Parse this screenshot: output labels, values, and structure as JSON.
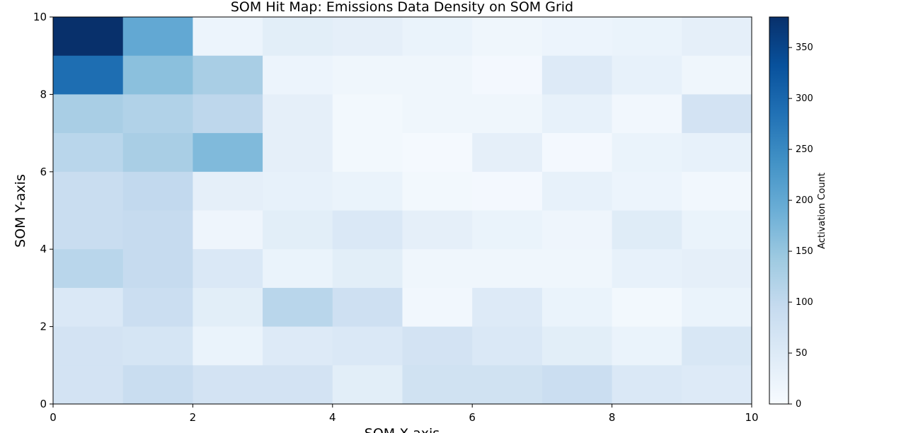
{
  "chart_data": {
    "type": "heatmap",
    "title": "SOM Hit Map: Emissions Data Density on SOM Grid",
    "xlabel": "SOM X-axis",
    "ylabel": "SOM Y-axis",
    "xlim": [
      0,
      10
    ],
    "ylim": [
      0,
      10
    ],
    "x_ticks": [
      0,
      2,
      4,
      6,
      8,
      10
    ],
    "y_ticks": [
      0,
      2,
      4,
      6,
      8,
      10
    ],
    "colormap": "Blues",
    "colorbar": {
      "label": "Activation Count",
      "range": [
        0,
        380
      ],
      "ticks": [
        0,
        50,
        100,
        150,
        200,
        250,
        300,
        350
      ]
    },
    "rows_top_to_bottom_y": [
      9,
      8,
      7,
      6,
      5,
      4,
      3,
      2,
      1,
      0
    ],
    "values": [
      [
        380,
        200,
        20,
        40,
        35,
        25,
        15,
        20,
        25,
        35
      ],
      [
        290,
        160,
        130,
        20,
        15,
        15,
        8,
        50,
        30,
        15
      ],
      [
        130,
        120,
        105,
        35,
        10,
        15,
        15,
        30,
        12,
        70
      ],
      [
        110,
        130,
        170,
        35,
        10,
        5,
        35,
        8,
        25,
        30
      ],
      [
        90,
        100,
        35,
        30,
        25,
        10,
        8,
        30,
        20,
        12
      ],
      [
        90,
        95,
        18,
        40,
        55,
        35,
        25,
        18,
        45,
        25
      ],
      [
        110,
        95,
        55,
        25,
        40,
        15,
        15,
        15,
        30,
        35
      ],
      [
        55,
        85,
        40,
        110,
        80,
        12,
        50,
        25,
        10,
        25
      ],
      [
        70,
        65,
        25,
        50,
        55,
        70,
        55,
        40,
        25,
        60
      ],
      [
        70,
        90,
        70,
        70,
        40,
        75,
        75,
        85,
        55,
        50
      ]
    ]
  }
}
